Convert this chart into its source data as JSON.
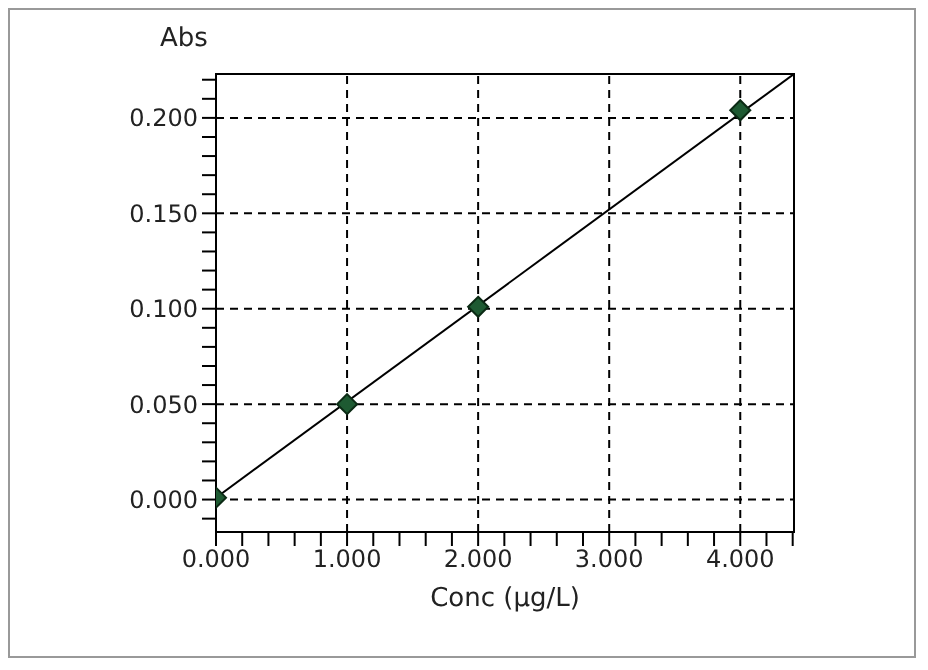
{
  "chart_data": {
    "type": "scatter",
    "xlabel": "Conc (µg/L)",
    "ylabel": "Abs",
    "grid": true,
    "x": [
      0,
      1,
      2,
      4
    ],
    "series": [
      {
        "marker": "diamond",
        "color": "#1e5a32",
        "values": [
          0.001,
          0.05,
          0.101,
          0.204
        ]
      },
      {
        "type": "line",
        "marker": "none",
        "color": "#000000",
        "x": [
          0,
          4.41
        ],
        "values": [
          0.001,
          0.223
        ]
      }
    ],
    "xlim": [
      0,
      4.41
    ],
    "ylim": [
      -0.017,
      0.223
    ],
    "xticks": [
      {
        "value": 0,
        "label": "0.000"
      },
      {
        "value": 0.2,
        "label": null
      },
      {
        "value": 0.4,
        "label": null
      },
      {
        "value": 0.6,
        "label": null
      },
      {
        "value": 0.8,
        "label": null
      },
      {
        "value": 1,
        "label": "1.000"
      },
      {
        "value": 1.2,
        "label": null
      },
      {
        "value": 1.4,
        "label": null
      },
      {
        "value": 1.6,
        "label": null
      },
      {
        "value": 1.8,
        "label": null
      },
      {
        "value": 2,
        "label": "2.000"
      },
      {
        "value": 2.2,
        "label": null
      },
      {
        "value": 2.4,
        "label": null
      },
      {
        "value": 2.6,
        "label": null
      },
      {
        "value": 2.8,
        "label": null
      },
      {
        "value": 3,
        "label": "3.000"
      },
      {
        "value": 3.2,
        "label": null
      },
      {
        "value": 3.4,
        "label": null
      },
      {
        "value": 3.6,
        "label": null
      },
      {
        "value": 3.8,
        "label": null
      },
      {
        "value": 4,
        "label": "4.000"
      },
      {
        "value": 4.2,
        "label": null
      },
      {
        "value": 4.4,
        "label": null
      }
    ],
    "yticks": [
      {
        "value": -0.01,
        "label": null
      },
      {
        "value": 0,
        "label": "0.000"
      },
      {
        "value": 0.01,
        "label": null
      },
      {
        "value": 0.02,
        "label": null
      },
      {
        "value": 0.03,
        "label": null
      },
      {
        "value": 0.04,
        "label": null
      },
      {
        "value": 0.05,
        "label": "0.050"
      },
      {
        "value": 0.06,
        "label": null
      },
      {
        "value": 0.07,
        "label": null
      },
      {
        "value": 0.08,
        "label": null
      },
      {
        "value": 0.09,
        "label": null
      },
      {
        "value": 0.1,
        "label": "0.100"
      },
      {
        "value": 0.11,
        "label": null
      },
      {
        "value": 0.12,
        "label": null
      },
      {
        "value": 0.13,
        "label": null
      },
      {
        "value": 0.14,
        "label": null
      },
      {
        "value": 0.15,
        "label": "0.150"
      },
      {
        "value": 0.16,
        "label": null
      },
      {
        "value": 0.17,
        "label": null
      },
      {
        "value": 0.18,
        "label": null
      },
      {
        "value": 0.19,
        "label": null
      },
      {
        "value": 0.2,
        "label": "0.200"
      },
      {
        "value": 0.21,
        "label": null
      },
      {
        "value": 0.22,
        "label": null
      }
    ]
  }
}
